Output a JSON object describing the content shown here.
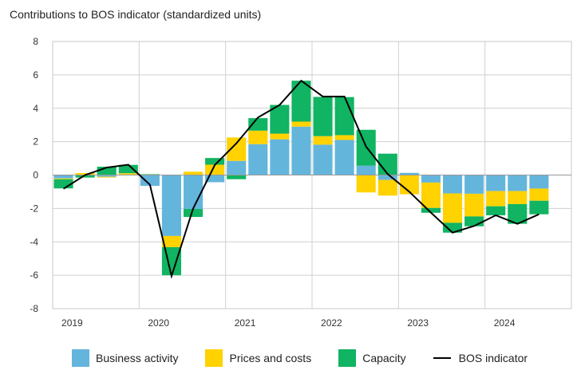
{
  "chart_data": {
    "type": "bar",
    "stacked": true,
    "title": "Contributions to BOS indicator (standardized units)",
    "xlabel": "",
    "ylabel": "",
    "ylim": [
      -8,
      8
    ],
    "yticks": [
      8,
      6,
      4,
      2,
      0,
      -2,
      -4,
      -6,
      -8
    ],
    "grid": true,
    "legend_position": "bottom",
    "year_labels": [
      "2019",
      "2020",
      "2021",
      "2022",
      "2023",
      "2024"
    ],
    "categories": [
      "2019Q1",
      "2019Q2",
      "2019Q3",
      "2019Q4",
      "2020Q1",
      "2020Q2",
      "2020Q3",
      "2020Q4",
      "2021Q1",
      "2021Q2",
      "2021Q3",
      "2021Q4",
      "2022Q1",
      "2022Q2",
      "2022Q3",
      "2022Q4",
      "2023Q1",
      "2023Q2",
      "2023Q3",
      "2023Q4",
      "2024Q1",
      "2024Q2",
      "2024Q3"
    ],
    "series": [
      {
        "name": "Business activity",
        "kind": "bar",
        "color": "#64b5dc",
        "values": [
          -0.2,
          0.0,
          -0.1,
          0.03,
          -0.65,
          -3.65,
          -2.03,
          -0.43,
          0.85,
          1.85,
          2.14,
          2.9,
          1.82,
          2.1,
          0.56,
          -0.29,
          0.13,
          -0.45,
          -1.1,
          -1.12,
          -0.96,
          -0.96,
          -0.81
        ]
      },
      {
        "name": "Prices and costs",
        "kind": "bar",
        "color": "#ffd200",
        "values": [
          -0.05,
          0.12,
          -0.05,
          0.08,
          0.0,
          -0.67,
          0.2,
          0.62,
          1.4,
          0.81,
          0.34,
          0.3,
          0.51,
          0.29,
          -1.04,
          -0.94,
          -1.15,
          -1.52,
          -1.76,
          -1.36,
          -0.91,
          -0.78,
          -0.73
        ]
      },
      {
        "name": "Capacity",
        "kind": "bar",
        "color": "#10b462",
        "values": [
          -0.55,
          -0.15,
          0.5,
          0.5,
          0.05,
          -1.68,
          -0.48,
          0.4,
          -0.25,
          0.75,
          1.72,
          2.45,
          2.35,
          2.28,
          2.15,
          1.28,
          0.0,
          -0.29,
          -0.59,
          -0.59,
          -0.54,
          -1.18,
          -0.81
        ]
      },
      {
        "name": "BOS indicator",
        "kind": "line",
        "color": "#000000",
        "values": [
          -0.82,
          0.0,
          0.45,
          0.62,
          -0.58,
          -6.05,
          -2.0,
          0.6,
          1.9,
          3.45,
          4.2,
          5.65,
          4.7,
          4.7,
          1.7,
          0.06,
          -1.0,
          -2.25,
          -3.45,
          -3.05,
          -2.41,
          -2.92,
          -2.35
        ]
      }
    ]
  }
}
